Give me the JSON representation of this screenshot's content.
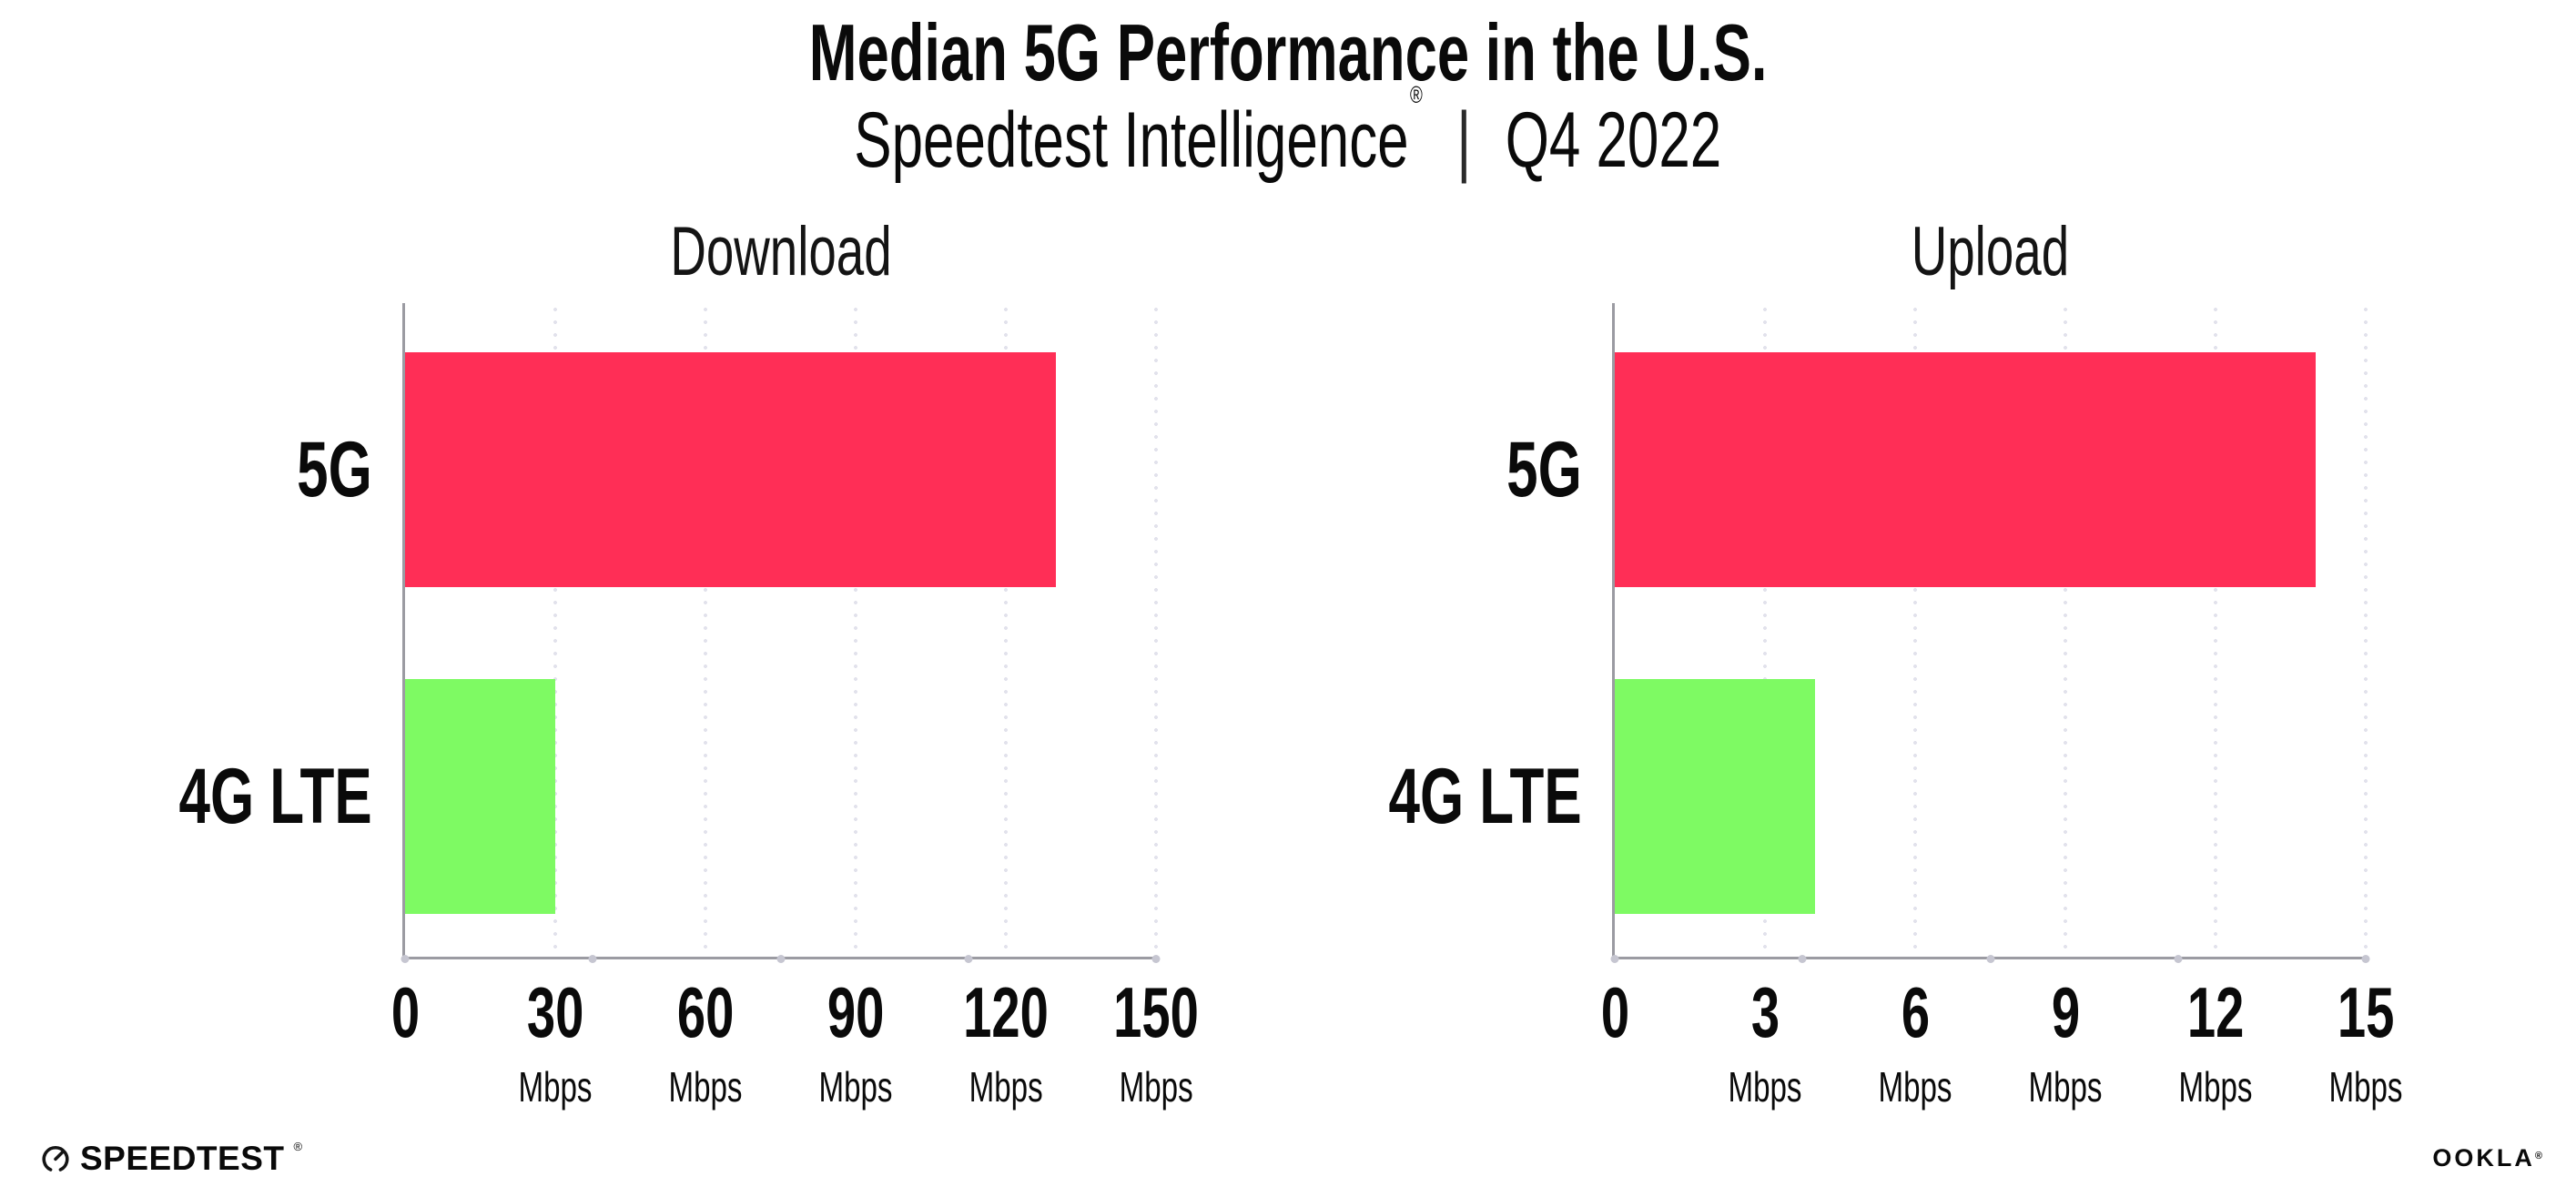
{
  "header": {
    "title": "Median 5G Performance in the U.S.",
    "subtitle_brand": "Speedtest Intelligence",
    "subtitle_reg": "®",
    "subtitle_sep": "|",
    "subtitle_period": "Q4 2022"
  },
  "chart_data": [
    {
      "type": "bar",
      "orientation": "horizontal",
      "title": "Download",
      "categories": [
        "5G",
        "4G LTE"
      ],
      "values": [
        130,
        30
      ],
      "unit": "Mbps",
      "xlim": [
        0,
        150
      ],
      "xticks": [
        0,
        30,
        60,
        90,
        120,
        150
      ],
      "bar_colors": [
        "#FF2E56",
        "#7EFA63"
      ],
      "grid": "dotted-vertical",
      "legend": "none"
    },
    {
      "type": "bar",
      "orientation": "horizontal",
      "title": "Upload",
      "categories": [
        "5G",
        "4G LTE"
      ],
      "values": [
        14,
        4
      ],
      "unit": "Mbps",
      "xlim": [
        0,
        15
      ],
      "xticks": [
        0,
        3,
        6,
        9,
        12,
        15
      ],
      "bar_colors": [
        "#FF2E56",
        "#7EFA63"
      ],
      "grid": "dotted-vertical",
      "legend": "none"
    }
  ],
  "footer": {
    "speedtest_label": "SPEEDTEST",
    "speedtest_reg": "®",
    "speedtest_icon": "speedtest-gauge-icon",
    "ookla_label": "OOKLA",
    "ookla_reg": "®"
  },
  "colors": {
    "bar_5g": "#FF2E56",
    "bar_4g_lte": "#7EFA63",
    "axis": "#9B9BA2",
    "gridline_dots": "#E2E2EC",
    "axis_end_dots": "#C6C6D1",
    "text": "#0A0A0A"
  }
}
